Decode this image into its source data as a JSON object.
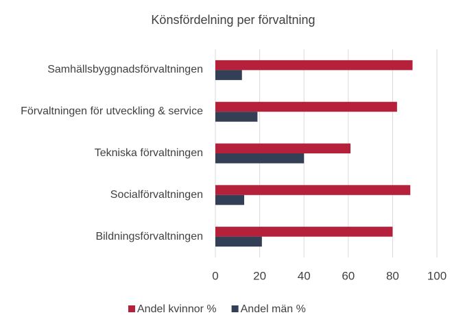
{
  "chart_data": {
    "type": "hbar",
    "title": "Könsfördelning per förvaltning",
    "categories": [
      "Samhällsbyggnadsförvaltningen",
      "Förvaltningen för utveckling & service",
      "Tekniska förvaltningen",
      "Socialförvaltningen",
      "Bildningsförvaltningen"
    ],
    "series": [
      {
        "name": "Andel kvinnor %",
        "color": "#b5203a",
        "values": [
          89,
          82,
          61,
          88,
          80
        ]
      },
      {
        "name": "Andel män %",
        "color": "#333f55",
        "values": [
          12,
          19,
          40,
          13,
          21
        ]
      }
    ],
    "xlim": [
      0,
      100
    ],
    "xticks": [
      0,
      20,
      40,
      60,
      80,
      100
    ],
    "grid": true
  }
}
